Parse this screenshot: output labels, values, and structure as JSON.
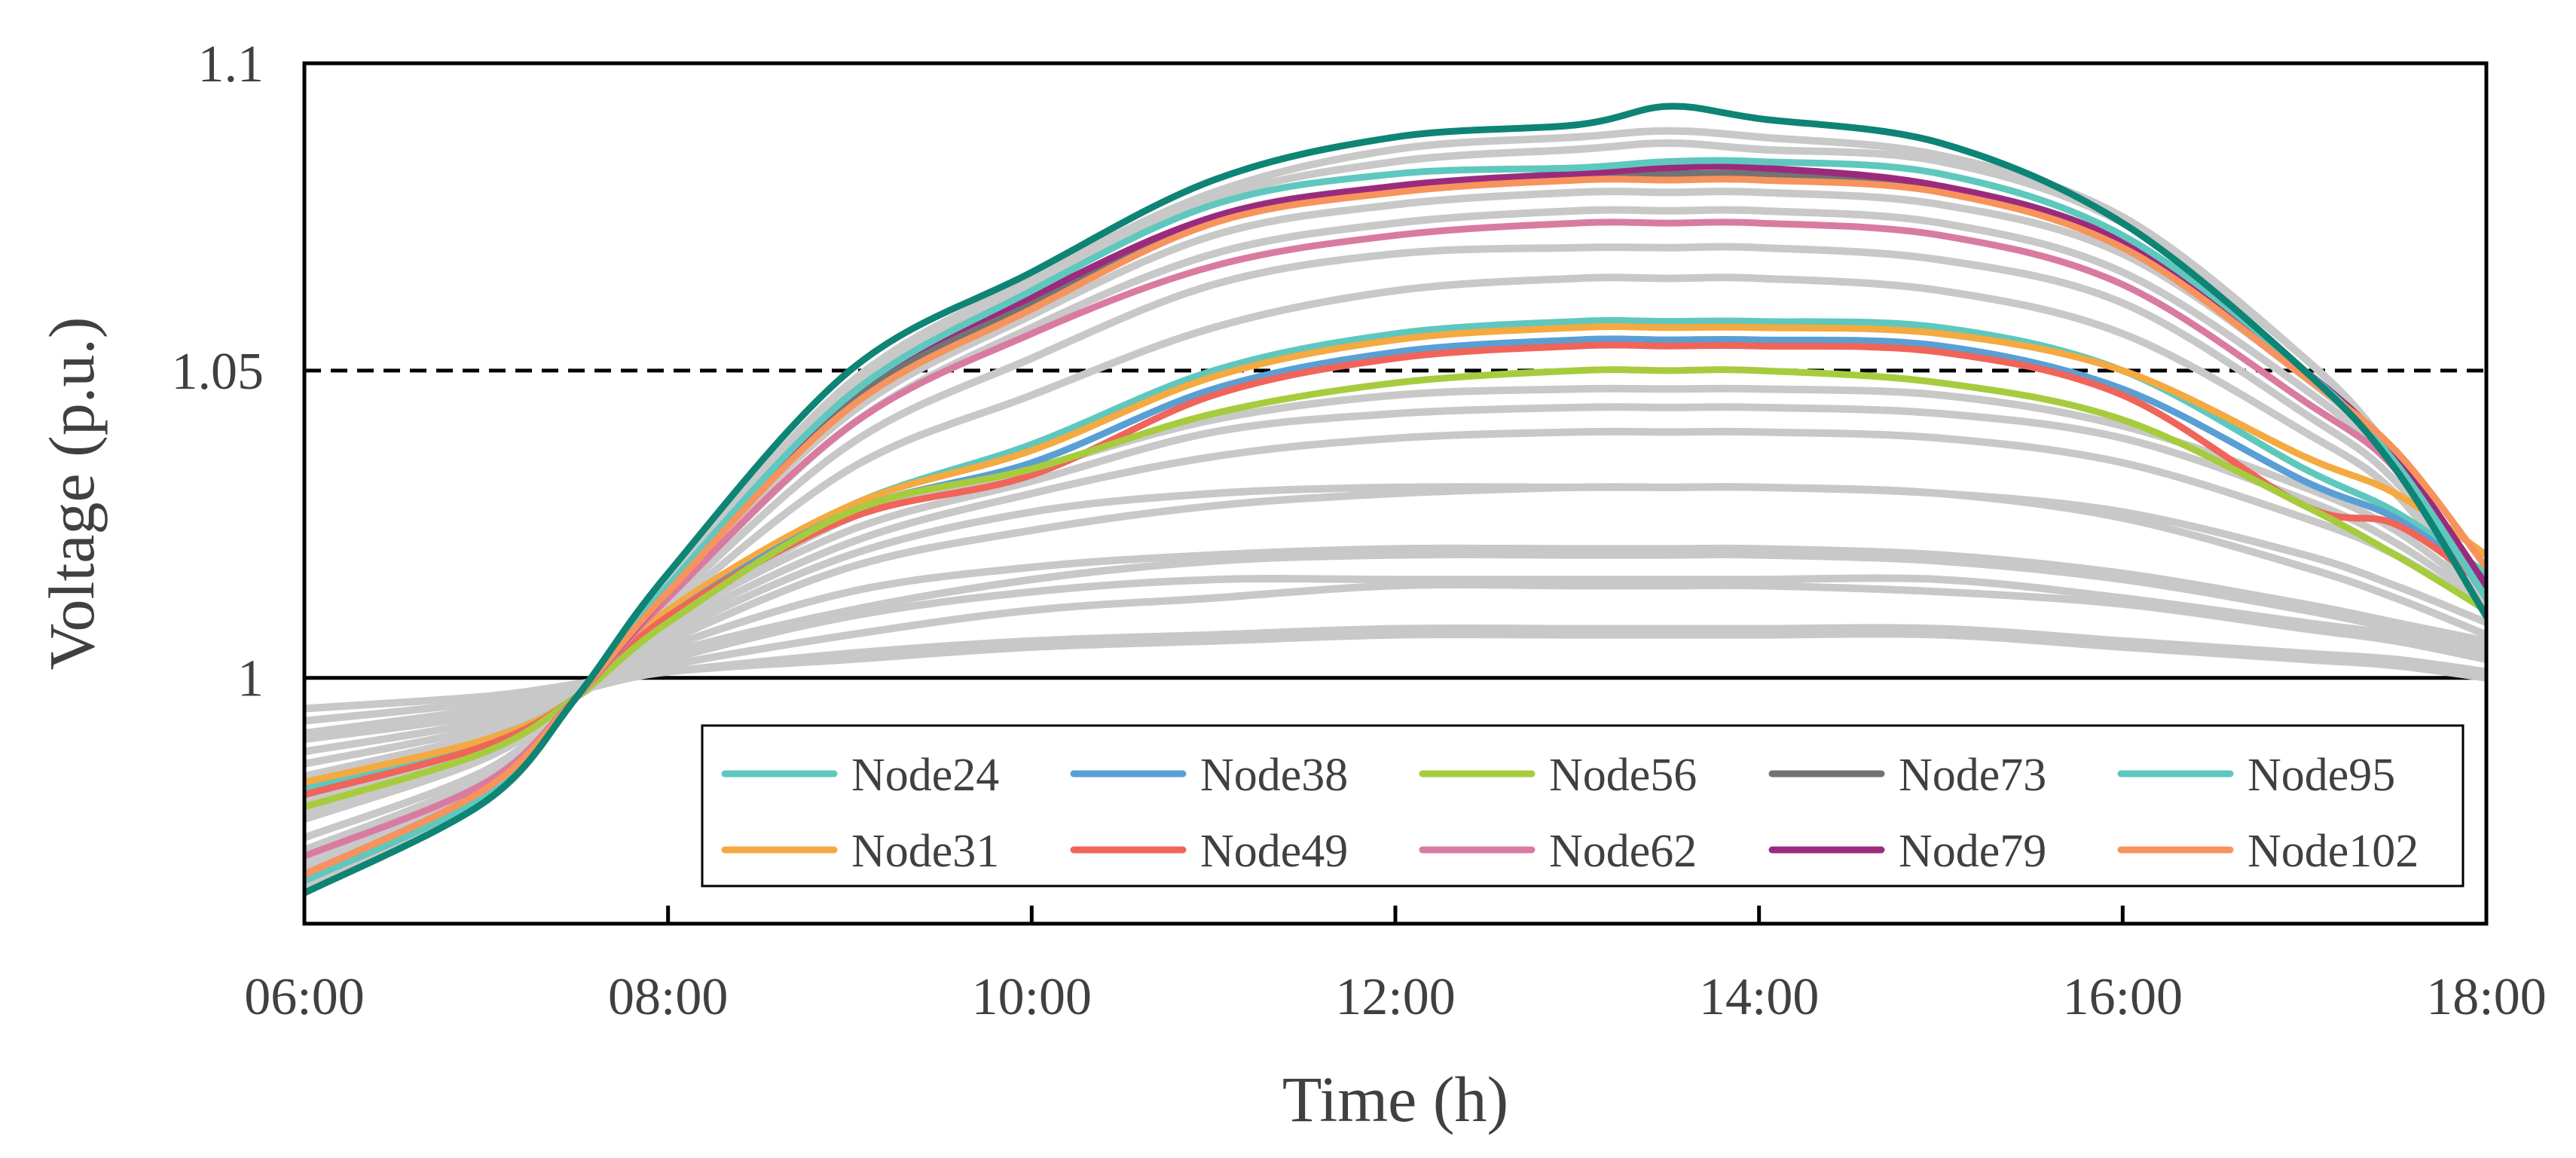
{
  "chart_data": {
    "type": "line",
    "title": "",
    "xlabel": "Time (h)",
    "ylabel": "Voltage (p.u.)",
    "xlim": [
      "06:00",
      "18:00"
    ],
    "ylim": [
      0.96,
      1.1
    ],
    "x_ticks": [
      "06:00",
      "08:00",
      "10:00",
      "12:00",
      "14:00",
      "16:00",
      "18:00"
    ],
    "y_ticks": [
      "1",
      "1.05",
      "1.1"
    ],
    "grid": false,
    "reference_lines": [
      {
        "y": 1.05,
        "style": "dashed",
        "color": "#000000"
      },
      {
        "y": 1.0,
        "style": "solid",
        "color": "#000000"
      }
    ],
    "legend": {
      "placement": "lower-right",
      "columns": 5
    },
    "x": [
      "06:00",
      "07:00",
      "07:30",
      "08:00",
      "09:00",
      "10:00",
      "11:00",
      "12:00",
      "13:00",
      "13:30",
      "14:00",
      "15:00",
      "16:00",
      "17:00",
      "17:30",
      "18:00"
    ],
    "series": [
      {
        "name": "Node24",
        "color": "#5EC8BE",
        "values": [
          0.982,
          0.99,
          0.997,
          1.011,
          1.028,
          1.038,
          1.05,
          1.056,
          1.058,
          1.058,
          1.058,
          1.057,
          1.05,
          1.034,
          1.027,
          1.017
        ]
      },
      {
        "name": "Node31",
        "color": "#F5A941",
        "values": [
          0.983,
          0.99,
          0.997,
          1.011,
          1.028,
          1.037,
          1.049,
          1.055,
          1.057,
          1.057,
          1.057,
          1.056,
          1.05,
          1.036,
          1.03,
          1.02
        ]
      },
      {
        "name": "Node38",
        "color": "#5A9FD4",
        "values": [
          0.981,
          0.989,
          0.997,
          1.01,
          1.027,
          1.035,
          1.047,
          1.053,
          1.055,
          1.055,
          1.055,
          1.054,
          1.047,
          1.032,
          1.026,
          1.016
        ]
      },
      {
        "name": "Node49",
        "color": "#F0645A",
        "values": [
          0.981,
          0.989,
          0.997,
          1.01,
          1.026,
          1.033,
          1.046,
          1.052,
          1.054,
          1.054,
          1.054,
          1.053,
          1.046,
          1.028,
          1.025,
          1.015
        ]
      },
      {
        "name": "Node56",
        "color": "#A6CC3E",
        "values": [
          0.979,
          0.988,
          0.997,
          1.009,
          1.027,
          1.034,
          1.043,
          1.048,
          1.05,
          1.05,
          1.05,
          1.048,
          1.042,
          1.028,
          1.02,
          1.011
        ]
      },
      {
        "name": "Node62",
        "color": "#D97BA1",
        "values": [
          0.971,
          0.983,
          0.997,
          1.013,
          1.041,
          1.056,
          1.067,
          1.072,
          1.074,
          1.074,
          1.074,
          1.072,
          1.064,
          1.045,
          1.034,
          1.013
        ]
      },
      {
        "name": "Node73",
        "color": "#737373",
        "values": [
          0.967,
          0.981,
          0.997,
          1.014,
          1.045,
          1.061,
          1.075,
          1.08,
          1.082,
          1.082,
          1.082,
          1.08,
          1.071,
          1.05,
          1.036,
          1.015
        ]
      },
      {
        "name": "Node79",
        "color": "#9B2A7F",
        "values": [
          0.968,
          0.982,
          0.997,
          1.014,
          1.046,
          1.062,
          1.075,
          1.08,
          1.082,
          1.083,
          1.083,
          1.08,
          1.071,
          1.05,
          1.036,
          1.015
        ]
      },
      {
        "name": "Node95",
        "color": "#5EC8BE",
        "values": [
          0.967,
          0.981,
          0.997,
          1.015,
          1.046,
          1.063,
          1.077,
          1.082,
          1.083,
          1.084,
          1.084,
          1.082,
          1.072,
          1.05,
          1.035,
          1.013
        ]
      },
      {
        "name": "Node102",
        "color": "#F7935C",
        "values": [
          0.968,
          0.982,
          0.997,
          1.014,
          1.044,
          1.06,
          1.074,
          1.079,
          1.081,
          1.081,
          1.081,
          1.079,
          1.07,
          1.049,
          1.037,
          1.018
        ]
      },
      {
        "color": "#0E8475",
        "values": [
          0.965,
          0.98,
          0.997,
          1.017,
          1.05,
          1.066,
          1.081,
          1.088,
          1.09,
          1.093,
          1.091,
          1.087,
          1.074,
          1.05,
          1.034,
          1.01
        ]
      }
    ],
    "background_series": {
      "color": "#C8C8C8",
      "values": [
        [
          0.995,
          0.997,
          0.999,
          1.001,
          1.004,
          1.006,
          1.007,
          1.008,
          1.008,
          1.008,
          1.008,
          1.008,
          1.006,
          1.004,
          1.003,
          1.001
        ],
        [
          0.993,
          0.996,
          0.998,
          1.001,
          1.003,
          1.005,
          1.006,
          1.007,
          1.007,
          1.007,
          1.007,
          1.007,
          1.005,
          1.003,
          1.002,
          1.0
        ],
        [
          0.991,
          0.995,
          0.998,
          1.002,
          1.007,
          1.011,
          1.013,
          1.015,
          1.015,
          1.015,
          1.015,
          1.014,
          1.012,
          1.008,
          1.006,
          1.003
        ],
        [
          0.99,
          0.994,
          0.998,
          1.003,
          1.01,
          1.014,
          1.016,
          1.016,
          1.016,
          1.016,
          1.016,
          1.016,
          1.013,
          1.009,
          1.007,
          1.004
        ],
        [
          0.988,
          0.993,
          0.998,
          1.004,
          1.011,
          1.016,
          1.019,
          1.02,
          1.02,
          1.02,
          1.02,
          1.019,
          1.016,
          1.011,
          1.008,
          1.005
        ],
        [
          0.986,
          0.992,
          0.998,
          1.005,
          1.014,
          1.018,
          1.02,
          1.021,
          1.021,
          1.021,
          1.021,
          1.02,
          1.017,
          1.012,
          1.009,
          1.006
        ],
        [
          0.984,
          0.991,
          0.998,
          1.006,
          1.018,
          1.024,
          1.028,
          1.03,
          1.031,
          1.031,
          1.031,
          1.03,
          1.026,
          1.018,
          1.013,
          1.007
        ],
        [
          0.982,
          0.99,
          0.997,
          1.007,
          1.02,
          1.027,
          1.03,
          1.031,
          1.031,
          1.031,
          1.031,
          1.03,
          1.027,
          1.02,
          1.015,
          1.009
        ],
        [
          0.98,
          0.989,
          0.997,
          1.008,
          1.022,
          1.03,
          1.036,
          1.039,
          1.04,
          1.04,
          1.04,
          1.039,
          1.035,
          1.026,
          1.02,
          1.011
        ],
        [
          0.978,
          0.988,
          0.997,
          1.009,
          1.024,
          1.032,
          1.04,
          1.043,
          1.044,
          1.044,
          1.044,
          1.043,
          1.039,
          1.029,
          1.022,
          1.012
        ],
        [
          0.977,
          0.987,
          0.997,
          1.009,
          1.026,
          1.034,
          1.042,
          1.046,
          1.047,
          1.047,
          1.047,
          1.046,
          1.041,
          1.031,
          1.024,
          1.013
        ],
        [
          0.974,
          0.985,
          0.997,
          1.011,
          1.034,
          1.046,
          1.057,
          1.063,
          1.065,
          1.065,
          1.065,
          1.063,
          1.056,
          1.04,
          1.03,
          1.011
        ],
        [
          0.972,
          0.984,
          0.997,
          1.012,
          1.038,
          1.052,
          1.064,
          1.069,
          1.07,
          1.07,
          1.07,
          1.068,
          1.061,
          1.043,
          1.032,
          1.012
        ],
        [
          0.97,
          0.983,
          0.997,
          1.013,
          1.041,
          1.057,
          1.069,
          1.074,
          1.076,
          1.076,
          1.076,
          1.074,
          1.066,
          1.047,
          1.034,
          1.013
        ],
        [
          0.969,
          0.982,
          0.997,
          1.014,
          1.043,
          1.059,
          1.072,
          1.077,
          1.079,
          1.079,
          1.079,
          1.077,
          1.069,
          1.049,
          1.035,
          1.014
        ],
        [
          0.966,
          0.981,
          0.997,
          1.015,
          1.047,
          1.064,
          1.078,
          1.084,
          1.086,
          1.087,
          1.086,
          1.084,
          1.074,
          1.052,
          1.036,
          1.014
        ],
        [
          0.966,
          0.98,
          0.997,
          1.016,
          1.048,
          1.065,
          1.079,
          1.086,
          1.088,
          1.089,
          1.088,
          1.085,
          1.075,
          1.052,
          1.036,
          1.014
        ]
      ]
    }
  }
}
